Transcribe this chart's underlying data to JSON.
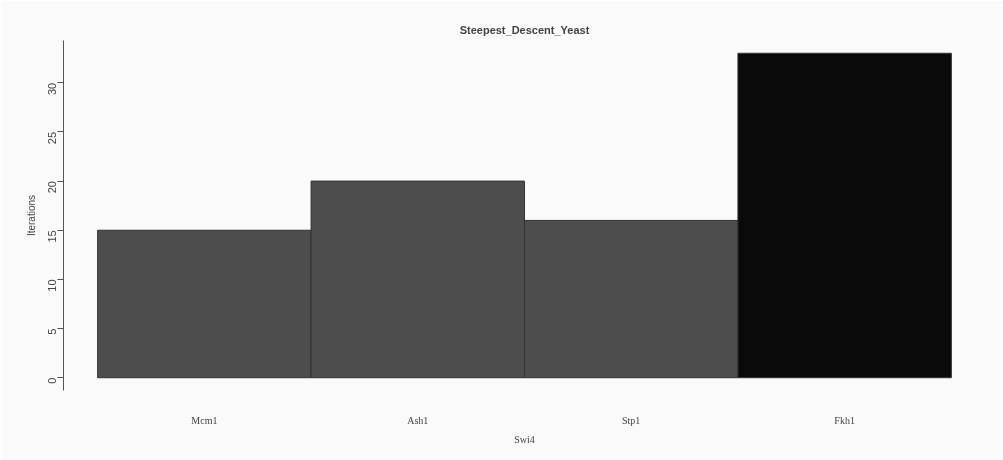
{
  "chart_data": {
    "type": "bar",
    "title": "Steepest_Descent_Yeast",
    "xlabel": "Swi4",
    "ylabel": "Iterations",
    "categories": [
      "Mcm1",
      "Ash1",
      "Stp1",
      "Fkh1"
    ],
    "values": [
      15,
      20,
      16,
      33
    ],
    "colors": [
      "#4d4d4d",
      "#4d4d4d",
      "#4d4d4d",
      "#0a0a0a"
    ],
    "ylim": [
      -1.3,
      34.3
    ],
    "yticks": [
      0,
      5,
      10,
      15,
      20,
      25,
      30
    ],
    "grid": false
  }
}
